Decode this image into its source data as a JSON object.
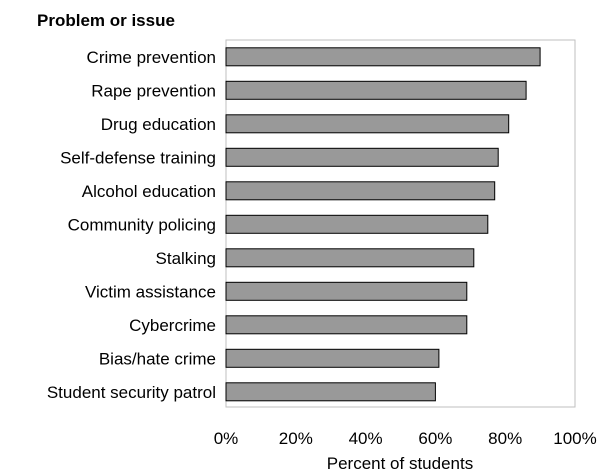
{
  "chart_data": {
    "type": "bar",
    "orientation": "horizontal",
    "title": "Problem or issue",
    "xlabel": "Percent of students",
    "ylabel": "",
    "categories": [
      "Crime prevention",
      "Rape prevention",
      "Drug education",
      "Self-defense training",
      "Alcohol education",
      "Community policing",
      "Stalking",
      "Victim assistance",
      "Cybercrime",
      "Bias/hate crime",
      "Student security patrol"
    ],
    "values": [
      90,
      86,
      81,
      78,
      77,
      75,
      71,
      69,
      69,
      61,
      60
    ],
    "xlim": [
      0,
      100
    ],
    "xticks": [
      "0%",
      "20%",
      "40%",
      "60%",
      "80%",
      "100%"
    ],
    "grid": false,
    "bar_color": "#999999",
    "bar_edge_color": "#000000"
  }
}
